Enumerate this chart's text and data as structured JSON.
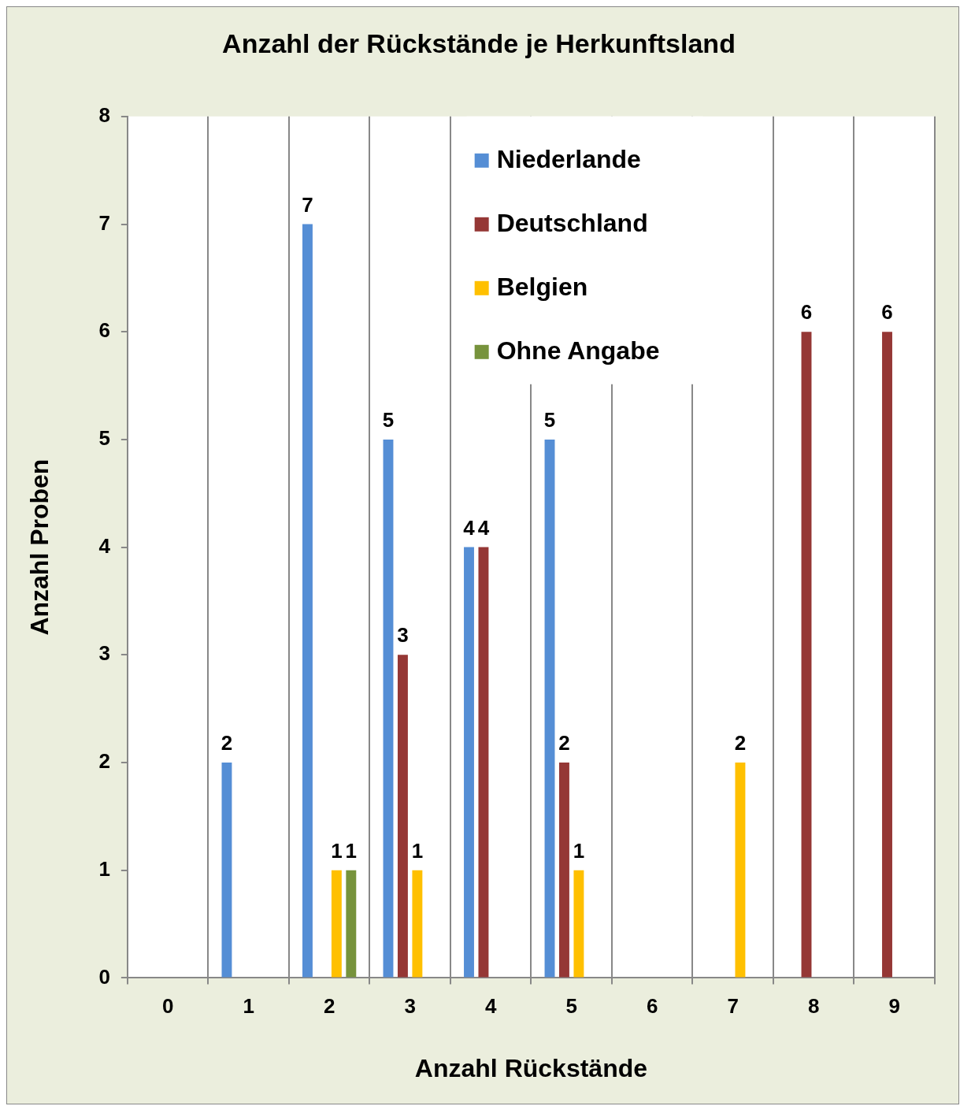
{
  "chart_data": {
    "type": "bar",
    "title": "Anzahl der Rückstände je Herkunftsland",
    "xlabel": "Anzahl Rückstände",
    "ylabel": "Anzahl Proben",
    "categories": [
      "0",
      "1",
      "2",
      "3",
      "4",
      "5",
      "6",
      "7",
      "8",
      "9"
    ],
    "series": [
      {
        "name": "Niederlande",
        "color": "#558ed5",
        "values": [
          null,
          2,
          7,
          5,
          4,
          5,
          null,
          null,
          null,
          null
        ]
      },
      {
        "name": "Deutschland",
        "color": "#953735",
        "values": [
          null,
          null,
          null,
          3,
          4,
          2,
          null,
          null,
          6,
          6
        ]
      },
      {
        "name": "Belgien",
        "color": "#ffc000",
        "values": [
          null,
          null,
          1,
          1,
          null,
          1,
          null,
          2,
          null,
          null
        ]
      },
      {
        "name": "Ohne Angabe",
        "color": "#77933c",
        "values": [
          null,
          null,
          1,
          null,
          null,
          null,
          null,
          null,
          null,
          null
        ]
      }
    ],
    "ylim": [
      0,
      8
    ],
    "yticks": [
      0,
      1,
      2,
      3,
      4,
      5,
      6,
      7,
      8
    ],
    "grid": "x",
    "legend": "top right",
    "data_labels": true
  }
}
